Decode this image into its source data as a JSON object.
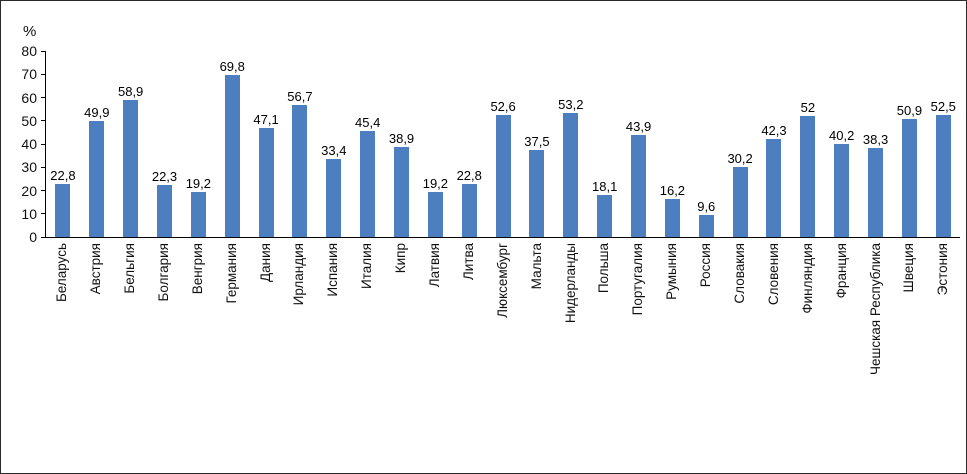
{
  "chart_data": {
    "type": "bar",
    "title": "",
    "ylabel": "%",
    "xlabel": "",
    "ylim": [
      0,
      80
    ],
    "yticks": [
      0,
      10,
      20,
      30,
      40,
      50,
      60,
      70,
      80
    ],
    "grid": false,
    "legend": "none",
    "bar_color": "#4d7ebf",
    "categories": [
      "Беларусь",
      "Австрия",
      "Бельгия",
      "Болгария",
      "Венгрия",
      "Германия",
      "Дания",
      "Ирландия",
      "Испания",
      "Италия",
      "Кипр",
      "Латвия",
      "Литва",
      "Люксембург",
      "Мальта",
      "Нидерланды",
      "Польша",
      "Португалия",
      "Румыния",
      "Россия",
      "Словакия",
      "Словения",
      "Финляндия",
      "Франция",
      "Чешская Республика",
      "Швеция",
      "Эстония"
    ],
    "values": [
      22.8,
      49.9,
      58.9,
      22.3,
      19.2,
      69.8,
      47.1,
      56.7,
      33.4,
      45.4,
      38.9,
      19.2,
      22.8,
      52.6,
      37.5,
      53.2,
      18.1,
      43.9,
      16.2,
      9.6,
      30.2,
      42.3,
      52,
      40.2,
      38.3,
      50.9,
      52.5
    ],
    "value_labels": [
      "22,8",
      "49,9",
      "58,9",
      "22,3",
      "19,2",
      "69,8",
      "47,1",
      "56,7",
      "33,4",
      "45,4",
      "38,9",
      "19,2",
      "22,8",
      "52,6",
      "37,5",
      "53,2",
      "18,1",
      "43,9",
      "16,2",
      "9,6",
      "30,2",
      "42,3",
      "52",
      "40,2",
      "38,3",
      "50,9",
      "52,5"
    ]
  }
}
